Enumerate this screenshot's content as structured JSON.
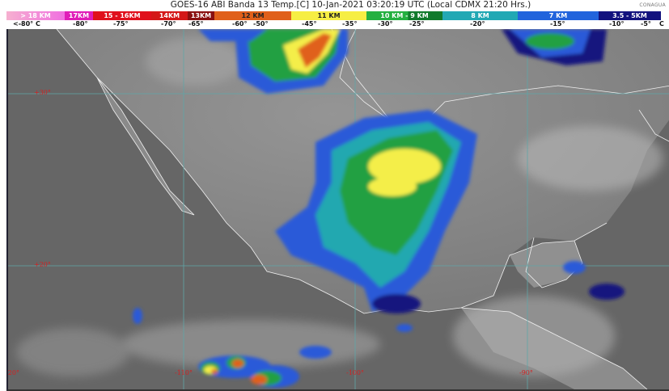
{
  "header": {
    "title": "GOES-16 ABI Banda 13 Temp.[C] 10-Jan-2021 03:20:19 UTC (Local CDMX  21:20 Hrs.)",
    "logo": "CONAGUA"
  },
  "legend": [
    {
      "label": "> 18 KM",
      "color": "#f27ad8"
    },
    {
      "label": "17KM",
      "color": "#e01cb8"
    },
    {
      "label": "15 - 16KM",
      "color": "#e0101c"
    },
    {
      "label": "14KM",
      "color": "#d41818"
    },
    {
      "label": "13KM",
      "color": "#8a1010"
    },
    {
      "label": "12 KM",
      "color": "#e0601a"
    },
    {
      "label": "11 KM",
      "color": "#f6ee44"
    },
    {
      "label": "10 KM - 9 KM",
      "color": "#1ea444"
    },
    {
      "label": "8 KM",
      "color": "#22a8b4"
    },
    {
      "label": "7 KM",
      "color": "#2264dc"
    },
    {
      "label": "3.5 - 5KM",
      "color": "#12127e"
    }
  ],
  "temperatures": [
    "<-80° C",
    "-80°",
    "-75°",
    "-70°",
    "-65°",
    "-60°",
    "-50°",
    "-45°",
    "-35°",
    "-30°",
    "-25°",
    "-20°",
    "-15°",
    "-10°",
    "-5°",
    "C"
  ],
  "grid": {
    "latitudes": [
      "+30°",
      "+20°"
    ],
    "longitudes": [
      "-120°",
      "-110°",
      "-100°",
      "-90°"
    ]
  }
}
